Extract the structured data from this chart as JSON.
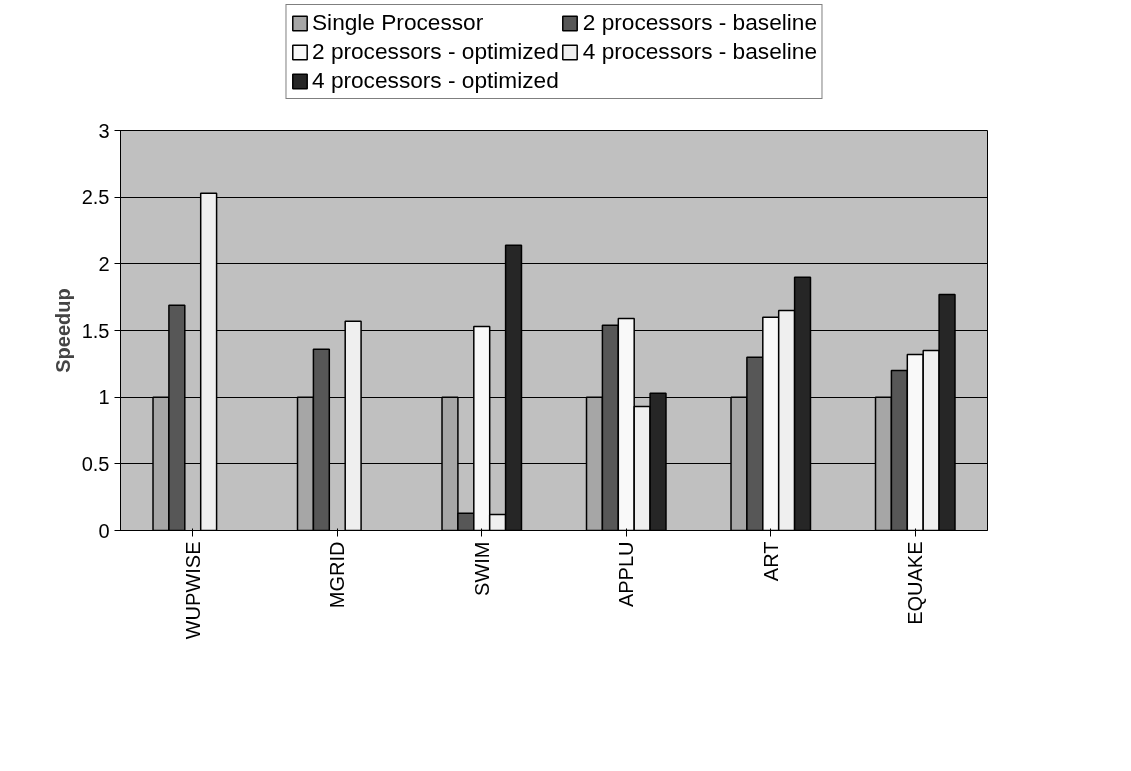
{
  "chart_data": {
    "type": "bar",
    "ylabel": "Speedup",
    "categories": [
      "WUPWISE",
      "MGRID",
      "SWIM",
      "APPLU",
      "ART",
      "EQUAKE"
    ],
    "series": [
      {
        "name": "Single Processor",
        "color": "#a6a6a6",
        "values": [
          1,
          1,
          1,
          1,
          1,
          1
        ]
      },
      {
        "name": "2 processors - baseline",
        "color": "#575757",
        "values": [
          1.69,
          1.36,
          0.13,
          1.54,
          1.3,
          1.2
        ]
      },
      {
        "name": "2 processors - optimized",
        "color": "#f9f9f9",
        "values": [
          null,
          null,
          1.53,
          1.59,
          1.6,
          1.32
        ]
      },
      {
        "name": "4 processors - baseline",
        "color": "#efefef",
        "values": [
          2.53,
          1.57,
          0.12,
          0.93,
          1.65,
          1.35
        ]
      },
      {
        "name": "4 processors - optimized",
        "color": "#262626",
        "values": [
          null,
          null,
          2.14,
          1.03,
          1.9,
          1.77
        ]
      }
    ],
    "ylim": [
      0,
      3
    ],
    "yticks": [
      0,
      0.5,
      1,
      1.5,
      2,
      2.5,
      3
    ],
    "grid": "y",
    "legend": "top"
  }
}
